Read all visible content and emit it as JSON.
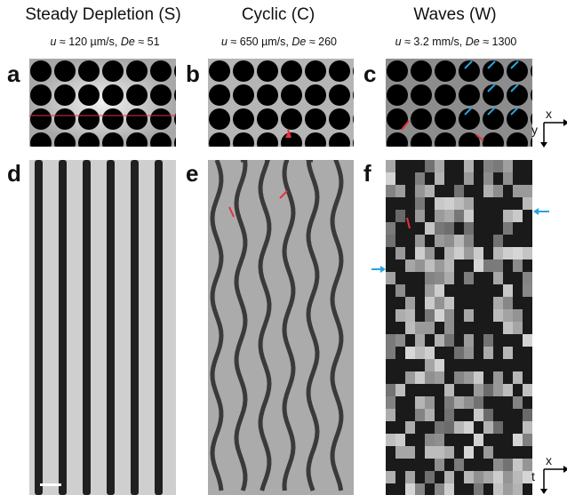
{
  "columns": [
    {
      "title": "Steady Depletion (S)",
      "velocity": "u",
      "velocity_value": " ≈ 120 µm/s, ",
      "deborah": "De",
      "deborah_value": " ≈ 51"
    },
    {
      "title": "Cyclic (C)",
      "velocity": "u",
      "velocity_value": " ≈ 650 µm/s, ",
      "deborah": "De",
      "deborah_value": " ≈ 260"
    },
    {
      "title": "Waves (W)",
      "velocity": "u",
      "velocity_value": " ≈ 3.2 mm/s, ",
      "deborah": "De",
      "deborah_value": " ≈ 1300"
    }
  ],
  "panel_labels": [
    "a",
    "b",
    "c",
    "d",
    "e",
    "f"
  ],
  "axes": {
    "top": {
      "x": "x",
      "y": "y"
    },
    "bottom": {
      "x": "x",
      "t": "t"
    }
  },
  "colors": {
    "marker_red": "#e8323c",
    "marker_blue": "#29a3e0",
    "pillar": "#000000",
    "fluid": "#cfcfcf"
  }
}
